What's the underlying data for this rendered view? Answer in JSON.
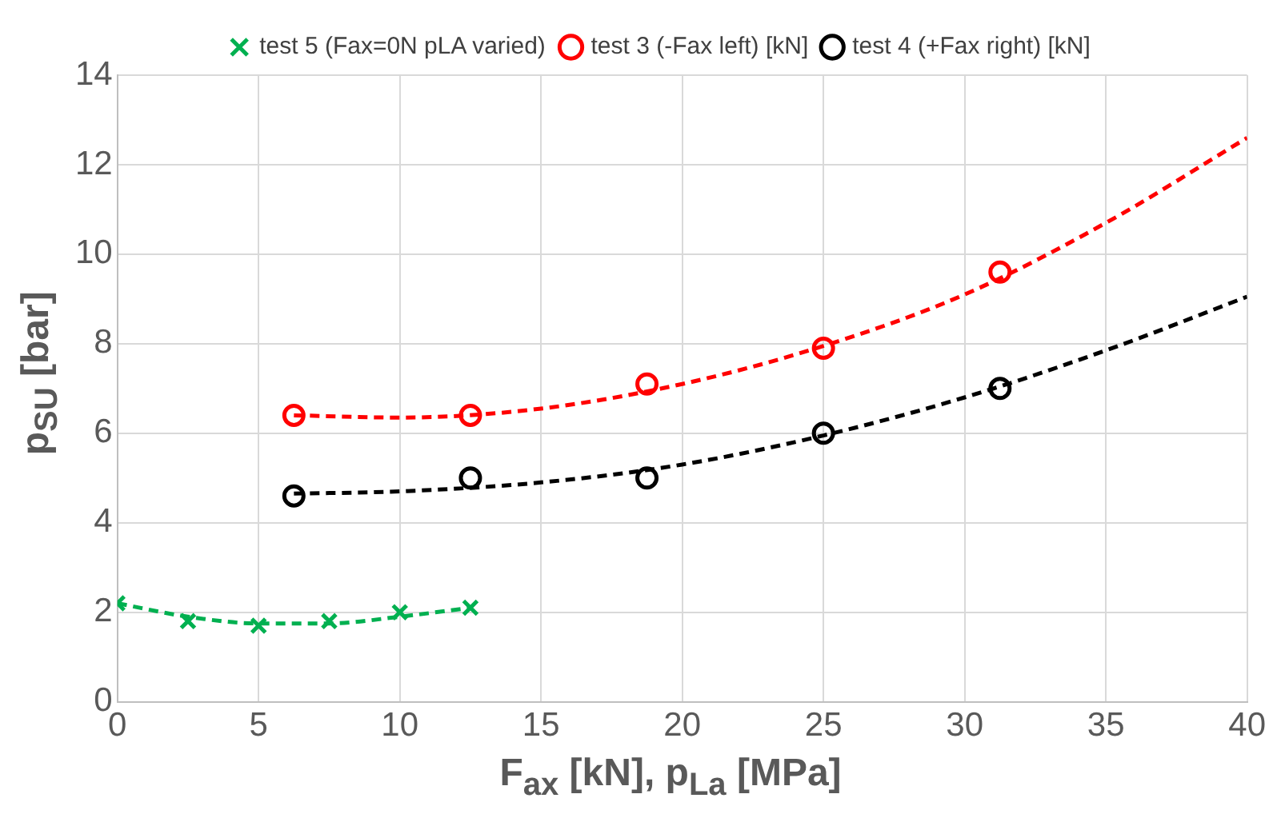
{
  "chart_data": {
    "type": "scatter",
    "xlabel": "F$_{ax}$ [kN], p$_{La}$ [MPa]",
    "ylabel": "p$_{SU}$ [bar]",
    "xlim": [
      0,
      40
    ],
    "xticks": [
      0,
      5,
      10,
      15,
      20,
      25,
      30,
      35,
      40
    ],
    "ylim": [
      0,
      14
    ],
    "yticks": [
      0,
      2,
      4,
      6,
      8,
      10,
      12,
      14
    ],
    "grid": true,
    "legend": "top",
    "series": [
      {
        "name": "test 5 (Fax=0N pLA varied)",
        "type": "scatter",
        "color": "#00b050",
        "marker": "cross",
        "x": [
          0,
          2.5,
          5,
          7.5,
          10,
          12.5
        ],
        "values": [
          2.2,
          1.8,
          1.7,
          1.8,
          2.0,
          2.1
        ]
      },
      {
        "name": "test 3 (-Fax left) [kN]",
        "type": "scatter",
        "color": "#ff0000",
        "marker": "circle",
        "x": [
          6.25,
          12.5,
          18.75,
          25,
          31.25
        ],
        "values": [
          6.4,
          6.4,
          7.1,
          7.9,
          9.6
        ]
      },
      {
        "name": "test 4 (+Fax right) [kN]",
        "type": "scatter",
        "color": "#000000",
        "marker": "circle",
        "x": [
          6.25,
          12.5,
          18.75,
          25,
          31.25
        ],
        "values": [
          4.6,
          5.0,
          5.0,
          6.0,
          7.0
        ]
      },
      {
        "type": "line",
        "color": "#00b050",
        "marker": "none",
        "line_style": "dashed",
        "x": [
          0,
          2.5,
          5,
          7.5,
          10,
          12.5
        ],
        "values": [
          2.2,
          1.9,
          1.75,
          1.75,
          1.9,
          2.1
        ]
      },
      {
        "type": "line",
        "color": "#ff0000",
        "marker": "none",
        "line_style": "dashed",
        "x": [
          6.25,
          10,
          15,
          20,
          25,
          30,
          35,
          40
        ],
        "values": [
          6.4,
          6.35,
          6.55,
          7.1,
          7.95,
          9.1,
          10.7,
          12.6
        ]
      },
      {
        "type": "line",
        "color": "#000000",
        "marker": "none",
        "line_style": "dashed",
        "x": [
          6.25,
          10,
          15,
          20,
          25,
          30,
          35,
          40
        ],
        "values": [
          4.65,
          4.7,
          4.9,
          5.3,
          5.95,
          6.8,
          7.85,
          9.05
        ]
      }
    ]
  }
}
